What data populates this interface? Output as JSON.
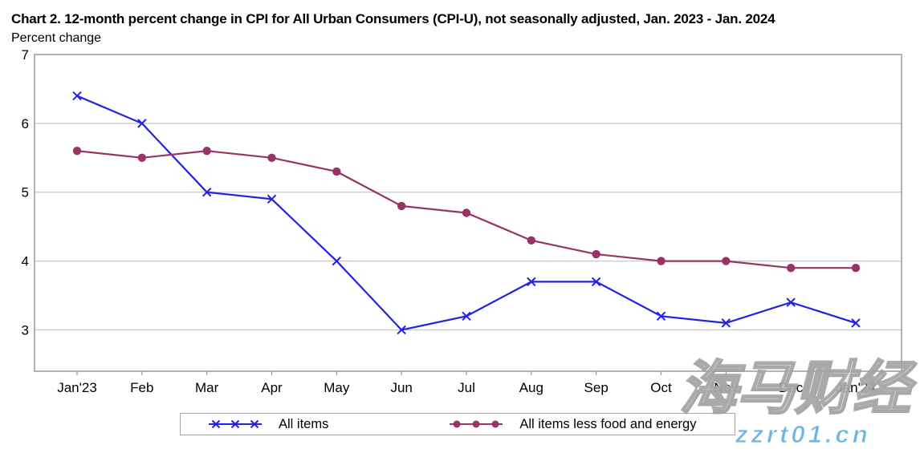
{
  "chart_data": {
    "type": "line",
    "title": "Chart 2. 12-month percent change in CPI for All Urban Consumers (CPI-U), not seasonally adjusted, Jan. 2023 - Jan. 2024",
    "ylabel_caption": "Percent change",
    "categories": [
      "Jan'23",
      "Feb",
      "Mar",
      "Apr",
      "May",
      "Jun",
      "Jul",
      "Aug",
      "Sep",
      "Oct",
      "Nov",
      "Dec",
      "Jan'24"
    ],
    "series": [
      {
        "name": "All items",
        "marker": "x",
        "color": "#2222e6",
        "values": [
          6.4,
          6.0,
          5.0,
          4.9,
          4.0,
          3.0,
          3.2,
          3.7,
          3.7,
          3.2,
          3.1,
          3.4,
          3.1
        ]
      },
      {
        "name": "All items less food and energy",
        "marker": "circle",
        "color": "#993366",
        "values": [
          5.6,
          5.5,
          5.6,
          5.5,
          5.3,
          4.8,
          4.7,
          4.3,
          4.1,
          4.0,
          4.0,
          3.9,
          3.9
        ]
      }
    ],
    "yticks": [
      3,
      4,
      5,
      6,
      7
    ],
    "ylim": [
      2.4,
      7
    ],
    "grid": true,
    "legend_position": "bottom-center",
    "colors": {
      "axis": "#999999",
      "gridline": "#c9c9c9",
      "text": "#000000"
    }
  },
  "watermark": {
    "text_cjk": "海马财经",
    "text_url": "zzrt01.cn",
    "url_color": "#6ab5e2"
  }
}
